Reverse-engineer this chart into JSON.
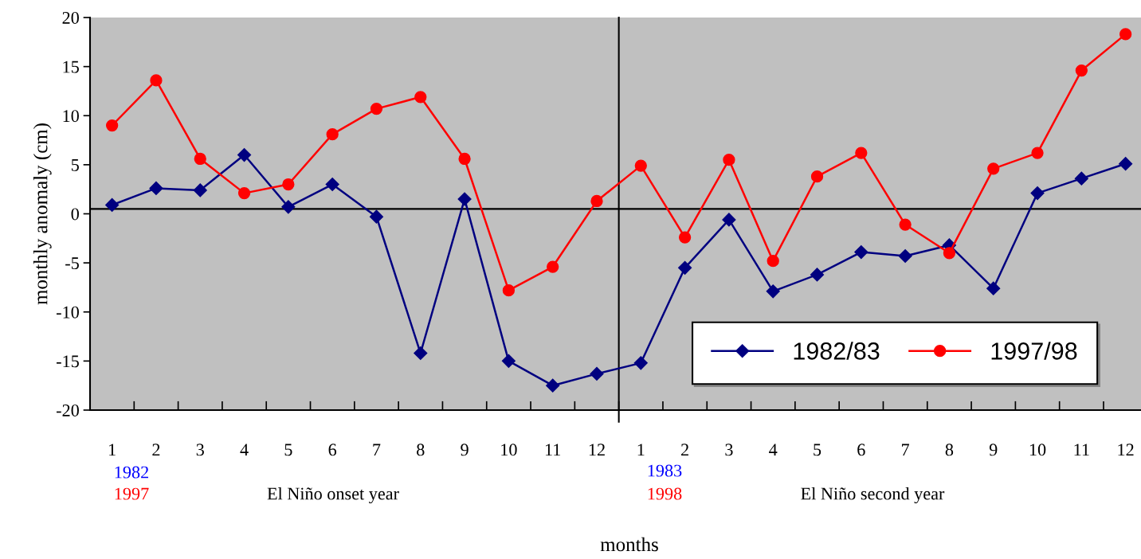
{
  "chart_data": {
    "type": "line",
    "xlabel": "months",
    "ylabel": "monthly anomaly (cm)",
    "categories": [
      "1",
      "2",
      "3",
      "4",
      "5",
      "6",
      "7",
      "8",
      "9",
      "10",
      "11",
      "12",
      "1",
      "2",
      "3",
      "4",
      "5",
      "6",
      "7",
      "8",
      "9",
      "10",
      "11",
      "12"
    ],
    "series": [
      {
        "name": "1982/83",
        "color": "#000080",
        "marker": "diamond",
        "values": [
          0.9,
          2.6,
          2.4,
          6.0,
          0.7,
          3.0,
          -0.3,
          -14.2,
          1.5,
          -15.0,
          -17.5,
          -16.3,
          -15.2,
          -5.5,
          -0.6,
          -7.9,
          -6.2,
          -3.9,
          -4.3,
          -3.2,
          -7.6,
          2.1,
          3.6,
          5.1
        ]
      },
      {
        "name": "1997/98",
        "color": "#ff0000",
        "marker": "circle",
        "values": [
          9.0,
          13.6,
          5.6,
          2.1,
          3.0,
          8.1,
          10.7,
          11.9,
          5.6,
          -7.8,
          -5.4,
          1.3,
          4.9,
          -2.4,
          5.5,
          -4.8,
          3.8,
          6.2,
          -1.1,
          -4.0,
          4.6,
          6.2,
          14.6,
          18.3
        ]
      }
    ],
    "ylim": [
      -20,
      20
    ],
    "yticks": [
      -20,
      -15,
      -10,
      -5,
      0,
      5,
      10,
      15,
      20
    ],
    "ref_lines": [
      {
        "axis": "y",
        "value": 0.5,
        "color": "#000000"
      }
    ],
    "legend": "right",
    "grid": false,
    "line_style": "solid",
    "annotations": [
      "1982",
      "1997",
      "El Niño onset year",
      "1983",
      "1998",
      "El Niño second year"
    ]
  }
}
